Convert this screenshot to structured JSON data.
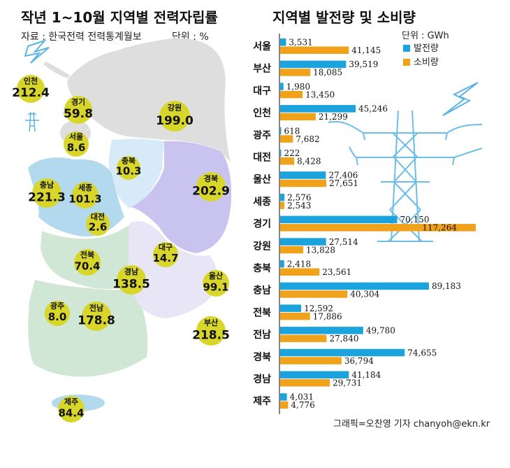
{
  "colors": {
    "production": "#1aa3dc",
    "consumption": "#f0a21a",
    "bubble": "#d8d62a",
    "region_gray": "#dedede",
    "region_blue": "#b3d9ef",
    "region_lavender": "#c9c4ef",
    "region_pale_blue": "#d6ebf7",
    "region_green": "#cfe7d4",
    "region_light_lavender": "#e8e6f6",
    "icon_blue": "#5ab4e4"
  },
  "icons": [
    "lightning-bolt-icon",
    "transmission-tower-icon"
  ],
  "footer": {
    "credit": "그래픽=오찬영 기자 chanyoh@ekn.kr"
  },
  "chart_data": [
    {
      "type": "map",
      "title": "작년 1~10월 지역별 전력자립률",
      "source": "자료 : 한국전력 전력통계월보",
      "unit": "단위 : %",
      "regions": [
        {
          "name": "인천",
          "value": "212.4"
        },
        {
          "name": "경기",
          "value": "59.8"
        },
        {
          "name": "강원",
          "value": "199.0"
        },
        {
          "name": "서울",
          "value": "8.6"
        },
        {
          "name": "충북",
          "value": "10.3"
        },
        {
          "name": "충남",
          "value": "221.3"
        },
        {
          "name": "세종",
          "value": "101.3"
        },
        {
          "name": "대전",
          "value": "2.6"
        },
        {
          "name": "경북",
          "value": "202.9"
        },
        {
          "name": "전북",
          "value": "70.4"
        },
        {
          "name": "대구",
          "value": "14.7"
        },
        {
          "name": "경남",
          "value": "138.5"
        },
        {
          "name": "울산",
          "value": "99.1"
        },
        {
          "name": "광주",
          "value": "8.0"
        },
        {
          "name": "전남",
          "value": "178.8"
        },
        {
          "name": "부산",
          "value": "218.5"
        },
        {
          "name": "제주",
          "value": "84.4"
        }
      ]
    },
    {
      "type": "bar",
      "orientation": "horizontal",
      "title": "지역별 발전량 및 소비량",
      "unit": "단위 : GWh",
      "categories": [
        "서울",
        "부산",
        "대구",
        "인천",
        "광주",
        "대전",
        "울산",
        "세종",
        "경기",
        "강원",
        "충북",
        "충남",
        "전북",
        "전남",
        "경북",
        "경남",
        "제주"
      ],
      "series": [
        {
          "name": "발전량",
          "values": [
            3531,
            39519,
            1980,
            45246,
            618,
            222,
            27406,
            2576,
            70150,
            27514,
            2418,
            89183,
            12592,
            49780,
            74655,
            41184,
            4031
          ]
        },
        {
          "name": "소비량",
          "values": [
            41145,
            18085,
            13450,
            21299,
            7682,
            8428,
            27651,
            2543,
            117264,
            13828,
            23561,
            40304,
            17886,
            27840,
            36794,
            29731,
            4776
          ]
        }
      ],
      "xlim": [
        0,
        117264
      ]
    }
  ]
}
